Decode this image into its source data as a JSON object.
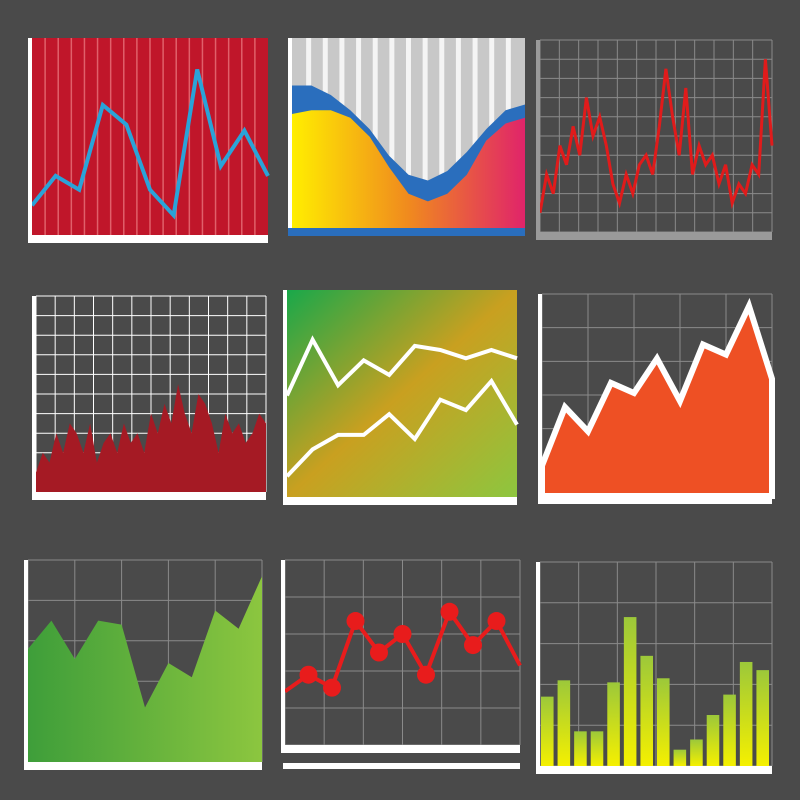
{
  "chart_data": [
    {
      "type": "line",
      "ylim": [
        0,
        100
      ],
      "series": [
        {
          "color": "#2aa3d8",
          "values": [
            15,
            30,
            23,
            66,
            56,
            23,
            10,
            84,
            35,
            53,
            30
          ]
        }
      ]
    },
    {
      "type": "area",
      "ylim": [
        0,
        100
      ],
      "series": [
        {
          "color": "#2a6ebd",
          "values": [
            75,
            75,
            70,
            62,
            52,
            38,
            28,
            25,
            30,
            40,
            52,
            62,
            65
          ]
        },
        {
          "color": [
            "#ffee00",
            "#f08a1e",
            "#e0246a"
          ],
          "values": [
            60,
            62,
            62,
            58,
            48,
            32,
            18,
            14,
            18,
            28,
            46,
            55,
            58
          ]
        }
      ]
    },
    {
      "type": "line",
      "ylim": [
        0,
        100
      ],
      "series": [
        {
          "color": "#e01b1b",
          "values": [
            10,
            30,
            20,
            45,
            35,
            55,
            40,
            70,
            50,
            60,
            45,
            25,
            15,
            30,
            20,
            35,
            40,
            30,
            55,
            85,
            60,
            40,
            75,
            30,
            45,
            35,
            40,
            25,
            35,
            15,
            25,
            20,
            35,
            30,
            90,
            45
          ]
        }
      ]
    },
    {
      "type": "area",
      "ylim": [
        0,
        100
      ],
      "series": [
        {
          "color": "#a51a24",
          "values": [
            10,
            20,
            15,
            30,
            20,
            35,
            30,
            20,
            35,
            15,
            25,
            30,
            20,
            35,
            25,
            30,
            20,
            40,
            30,
            45,
            35,
            55,
            40,
            30,
            50,
            45,
            35,
            20,
            40,
            30,
            35,
            25,
            30,
            40,
            35
          ]
        }
      ]
    },
    {
      "type": "line",
      "ylim": [
        0,
        100
      ],
      "series": [
        {
          "color": "#ffffff",
          "values": [
            49,
            76,
            54,
            66,
            59,
            73,
            71,
            67,
            71,
            67
          ]
        },
        {
          "color": "#ffffff",
          "values": [
            10,
            23,
            30,
            30,
            40,
            28,
            47,
            42,
            56,
            35
          ]
        }
      ]
    },
    {
      "type": "area",
      "ylim": [
        0,
        100
      ],
      "series": [
        {
          "color": "#ee5024",
          "values": [
            15,
            44,
            32,
            56,
            51,
            68,
            47,
            75,
            70,
            94,
            58
          ]
        }
      ]
    },
    {
      "type": "area",
      "ylim": [
        0,
        100
      ],
      "series": [
        {
          "color": [
            "#3e9e3a",
            "#8cc63f"
          ],
          "values": [
            56,
            70,
            51,
            70,
            68,
            27,
            49,
            42,
            75,
            66,
            92
          ]
        }
      ]
    },
    {
      "type": "line",
      "markers": true,
      "ylim": [
        0,
        100
      ],
      "series": [
        {
          "color": "#e81c1c",
          "values": [
            29,
            38,
            31,
            67,
            50,
            60,
            38,
            72,
            54,
            67,
            43
          ]
        }
      ]
    },
    {
      "type": "bar",
      "ylim": [
        0,
        100
      ],
      "series": [
        {
          "color": [
            "#f5f000",
            "#9cc83a"
          ],
          "values": [
            34,
            42,
            17,
            17,
            41,
            73,
            54,
            43,
            8,
            13,
            25,
            35,
            51,
            47
          ]
        }
      ]
    }
  ]
}
